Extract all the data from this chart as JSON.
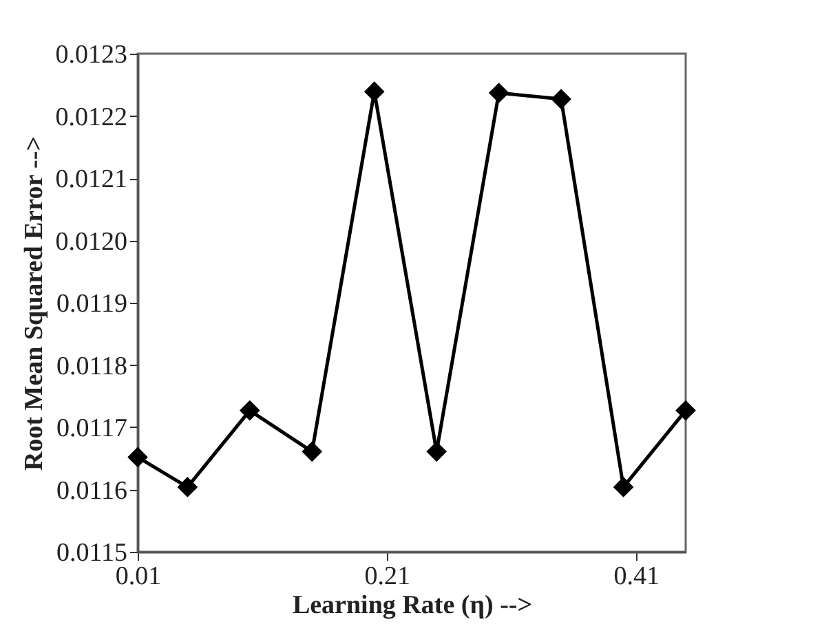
{
  "chart_data": {
    "type": "line",
    "xlabel": "Learning Rate (η) -->",
    "ylabel": "Root Mean Squared Error -->",
    "x": [
      0.01,
      0.05,
      0.1,
      0.15,
      0.2,
      0.25,
      0.3,
      0.35,
      0.4,
      0.45
    ],
    "series": [
      {
        "color": "#000000",
        "values": [
          0.011652,
          0.011604,
          0.011727,
          0.011661,
          0.012239,
          0.011661,
          0.012237,
          0.012227,
          0.011604,
          0.011727
        ]
      }
    ],
    "xlim": [
      0.01,
      0.45
    ],
    "xticks": [
      0.01,
      0.21,
      0.41
    ],
    "ylim": [
      0.0115,
      0.0123
    ],
    "yticks": [
      0.0115,
      0.0116,
      0.0117,
      0.0118,
      0.0119,
      {
        "value": 0.012,
        "label": "0.0120"
      },
      0.0121,
      0.0122,
      0.0123
    ],
    "grid": false,
    "legend": false,
    "marker": "diamond",
    "line_style": "solid"
  }
}
